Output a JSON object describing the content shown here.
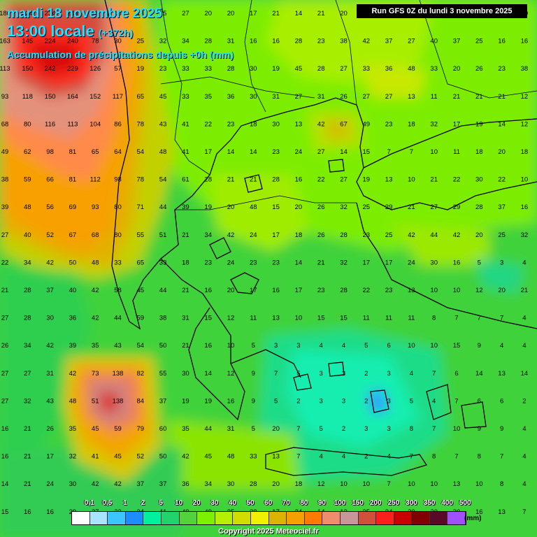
{
  "header": {
    "date_line": "mardi 18 novembre 2025",
    "time_line": "13:00 locale",
    "offset": "(+372h)",
    "variable": "Accumulation de précipitations depuis +0h (mm)",
    "run": "Run GFS 0Z du lundi 3 novembre 2025"
  },
  "footer": {
    "copyright": "Copyright 2025 Meteociel.fr"
  },
  "legend": {
    "unit": "(mm)",
    "labels": [
      "0,1",
      "0,5",
      "1",
      "2",
      "5",
      "10",
      "20",
      "30",
      "40",
      "50",
      "60",
      "70",
      "80",
      "90",
      "100",
      "150",
      "200",
      "250",
      "300",
      "350",
      "400",
      "500"
    ],
    "colors": [
      "#ffffff",
      "#a8e4ff",
      "#3bc6ff",
      "#1e8cff",
      "#00f0a0",
      "#22d26a",
      "#52d23c",
      "#7cf000",
      "#b4f000",
      "#d2dc00",
      "#f0f000",
      "#dcb400",
      "#f5a000",
      "#ff7a00",
      "#f08c6e",
      "#c89696",
      "#d24f3c",
      "#ff1e1e",
      "#c80000",
      "#820000",
      "#5a0a28",
      "#a050ff"
    ]
  },
  "map": {
    "grid_values": [
      [
        "180",
        "124",
        "234",
        "248",
        "78",
        "16",
        "13",
        "25",
        "27",
        "20",
        "20",
        "17",
        "21",
        "14",
        "21",
        "20",
        "21",
        "24",
        "23",
        "13",
        "44",
        "28",
        "48",
        "40"
      ],
      [
        "163",
        "145",
        "224",
        "240",
        "78",
        "30",
        "25",
        "32",
        "34",
        "28",
        "31",
        "16",
        "16",
        "28",
        "23",
        "38",
        "42",
        "37",
        "27",
        "40",
        "37",
        "25",
        "16",
        "16"
      ],
      [
        "113",
        "150",
        "242",
        "229",
        "126",
        "57",
        "19",
        "23",
        "33",
        "33",
        "28",
        "30",
        "19",
        "45",
        "28",
        "27",
        "33",
        "36",
        "48",
        "33",
        "20",
        "26",
        "23",
        "38"
      ],
      [
        "93",
        "118",
        "150",
        "164",
        "152",
        "117",
        "65",
        "45",
        "33",
        "35",
        "36",
        "30",
        "31",
        "27",
        "31",
        "26",
        "27",
        "27",
        "13",
        "11",
        "21",
        "21",
        "21",
        "12"
      ],
      [
        "68",
        "80",
        "116",
        "113",
        "104",
        "86",
        "78",
        "43",
        "41",
        "22",
        "23",
        "18",
        "30",
        "13",
        "42",
        "67",
        "49",
        "23",
        "18",
        "32",
        "17",
        "19",
        "14",
        "12"
      ],
      [
        "49",
        "62",
        "98",
        "81",
        "65",
        "64",
        "54",
        "48",
        "41",
        "17",
        "14",
        "14",
        "23",
        "24",
        "27",
        "14",
        "15",
        "7",
        "7",
        "10",
        "11",
        "18",
        "20",
        "18"
      ],
      [
        "38",
        "59",
        "66",
        "81",
        "112",
        "98",
        "78",
        "54",
        "61",
        "28",
        "21",
        "21",
        "28",
        "16",
        "22",
        "27",
        "19",
        "13",
        "10",
        "21",
        "22",
        "30",
        "22",
        "10"
      ],
      [
        "39",
        "48",
        "56",
        "69",
        "93",
        "80",
        "71",
        "44",
        "39",
        "19",
        "20",
        "48",
        "15",
        "20",
        "26",
        "32",
        "25",
        "29",
        "21",
        "27",
        "29",
        "28",
        "37",
        "16"
      ],
      [
        "27",
        "40",
        "52",
        "67",
        "68",
        "80",
        "55",
        "51",
        "21",
        "34",
        "42",
        "24",
        "17",
        "18",
        "26",
        "28",
        "23",
        "25",
        "42",
        "44",
        "42",
        "20",
        "25",
        "32"
      ],
      [
        "22",
        "34",
        "42",
        "50",
        "48",
        "33",
        "65",
        "33",
        "18",
        "23",
        "24",
        "23",
        "23",
        "14",
        "21",
        "32",
        "17",
        "17",
        "24",
        "30",
        "16",
        "5",
        "3",
        "4"
      ],
      [
        "21",
        "28",
        "37",
        "40",
        "42",
        "58",
        "45",
        "44",
        "21",
        "16",
        "20",
        "17",
        "16",
        "17",
        "23",
        "28",
        "22",
        "23",
        "13",
        "10",
        "10",
        "12",
        "20",
        "21"
      ],
      [
        "27",
        "28",
        "30",
        "36",
        "42",
        "44",
        "59",
        "38",
        "31",
        "15",
        "12",
        "11",
        "13",
        "10",
        "15",
        "15",
        "11",
        "11",
        "11",
        "8",
        "7",
        "7",
        "7",
        "4"
      ],
      [
        "26",
        "34",
        "42",
        "39",
        "35",
        "43",
        "54",
        "50",
        "21",
        "16",
        "10",
        "5",
        "3",
        "3",
        "4",
        "4",
        "5",
        "6",
        "10",
        "10",
        "15",
        "9",
        "4",
        "4"
      ],
      [
        "27",
        "27",
        "31",
        "42",
        "73",
        "138",
        "82",
        "55",
        "30",
        "14",
        "12",
        "9",
        "7",
        "5",
        "3",
        "3",
        "2",
        "3",
        "4",
        "7",
        "6",
        "14",
        "13",
        "14"
      ],
      [
        "27",
        "32",
        "43",
        "48",
        "51",
        "138",
        "84",
        "37",
        "19",
        "19",
        "16",
        "9",
        "5",
        "2",
        "3",
        "3",
        "2",
        "3",
        "5",
        "4",
        "7",
        "6",
        "6",
        "2"
      ],
      [
        "16",
        "21",
        "26",
        "35",
        "45",
        "59",
        "79",
        "60",
        "35",
        "44",
        "31",
        "5",
        "20",
        "7",
        "5",
        "2",
        "3",
        "3",
        "8",
        "7",
        "10",
        "9",
        "9",
        "4"
      ],
      [
        "16",
        "21",
        "17",
        "32",
        "41",
        "45",
        "52",
        "50",
        "42",
        "45",
        "48",
        "33",
        "13",
        "7",
        "4",
        "4",
        "2",
        "4",
        "7",
        "8",
        "7",
        "8",
        "7",
        "4"
      ],
      [
        "14",
        "21",
        "24",
        "30",
        "42",
        "42",
        "37",
        "37",
        "36",
        "34",
        "30",
        "28",
        "20",
        "18",
        "12",
        "10",
        "10",
        "7",
        "10",
        "10",
        "13",
        "10",
        "8",
        "4"
      ],
      [
        "15",
        "16",
        "16",
        "29",
        "27",
        "33",
        "34",
        "41",
        "49",
        "49",
        "35",
        "28",
        "17",
        "24",
        "14",
        "13",
        "35",
        "24",
        "30",
        "20",
        "20",
        "16",
        "13",
        "7"
      ]
    ]
  }
}
